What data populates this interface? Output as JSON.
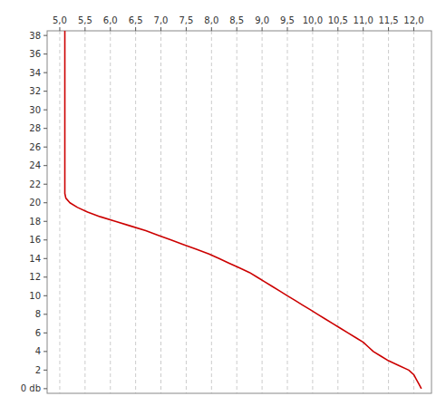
{
  "chart_data": {
    "type": "line",
    "x": [
      12.15,
      12.1,
      12.05,
      12.0,
      11.9,
      11.7,
      11.5,
      11.35,
      11.2,
      11.1,
      11.0,
      10.85,
      10.7,
      10.55,
      10.4,
      10.25,
      10.1,
      9.95,
      9.8,
      9.65,
      9.5,
      9.35,
      9.2,
      9.05,
      8.9,
      8.75,
      8.55,
      8.35,
      8.15,
      7.95,
      7.7,
      7.45,
      7.2,
      6.95,
      6.7,
      6.4,
      6.1,
      5.8,
      5.55,
      5.35,
      5.2,
      5.12,
      5.1,
      5.1,
      5.1,
      5.1,
      5.1,
      5.1,
      5.1,
      5.1,
      5.1,
      5.1,
      5.1,
      5.1,
      5.1,
      5.1,
      5.1,
      5.1,
      5.1,
      5.1,
      5.1,
      5.1,
      5.1,
      5.1,
      5.1,
      5.1,
      5.1,
      5.1,
      5.1,
      5.1,
      5.1,
      5.1,
      5.1,
      5.1,
      5.1,
      5.1,
      5.1,
      5.1
    ],
    "values": [
      0.0,
      0.5,
      1.0,
      1.5,
      2.0,
      2.5,
      3.0,
      3.5,
      4.0,
      4.5,
      5.0,
      5.5,
      6.0,
      6.5,
      7.0,
      7.5,
      8.0,
      8.5,
      9.0,
      9.5,
      10.0,
      10.5,
      11.0,
      11.5,
      12.0,
      12.5,
      13.0,
      13.5,
      14.0,
      14.5,
      15.0,
      15.5,
      16.0,
      16.5,
      17.0,
      17.5,
      18.0,
      18.5,
      19.0,
      19.5,
      20.0,
      20.5,
      21.0,
      21.5,
      22.0,
      22.5,
      23.0,
      23.5,
      24.0,
      24.5,
      25.0,
      25.5,
      26.0,
      26.5,
      27.0,
      27.5,
      28.0,
      28.5,
      29.0,
      29.5,
      30.0,
      30.5,
      31.0,
      31.5,
      32.0,
      32.5,
      33.0,
      33.5,
      34.0,
      34.5,
      35.0,
      35.5,
      36.0,
      36.5,
      37.0,
      37.5,
      38.0,
      38.5
    ],
    "color": "#cc0000",
    "xlim": [
      4.75,
      12.35
    ],
    "ylim": [
      38.5,
      -0.5
    ],
    "xticks": [
      {
        "value": 5.0,
        "label": "5,0"
      },
      {
        "value": 5.5,
        "label": "5,5"
      },
      {
        "value": 6.0,
        "label": "6,0"
      },
      {
        "value": 6.5,
        "label": "6,5"
      },
      {
        "value": 7.0,
        "label": "7,0"
      },
      {
        "value": 7.5,
        "label": "7,5"
      },
      {
        "value": 8.0,
        "label": "8,0"
      },
      {
        "value": 8.5,
        "label": "8,5"
      },
      {
        "value": 9.0,
        "label": "9,0"
      },
      {
        "value": 9.5,
        "label": "9,5"
      },
      {
        "value": 10.0,
        "label": "10,0"
      },
      {
        "value": 10.5,
        "label": "10,5"
      },
      {
        "value": 11.0,
        "label": "11,0"
      },
      {
        "value": 11.5,
        "label": "11,5"
      },
      {
        "value": 12.0,
        "label": "12,0"
      }
    ],
    "yticks": [
      {
        "value": 0,
        "label": "0 db"
      },
      2,
      4,
      6,
      8,
      10,
      12,
      14,
      16,
      18,
      20,
      22,
      24,
      26,
      28,
      30,
      32,
      34,
      36,
      38
    ],
    "grid": "x"
  }
}
